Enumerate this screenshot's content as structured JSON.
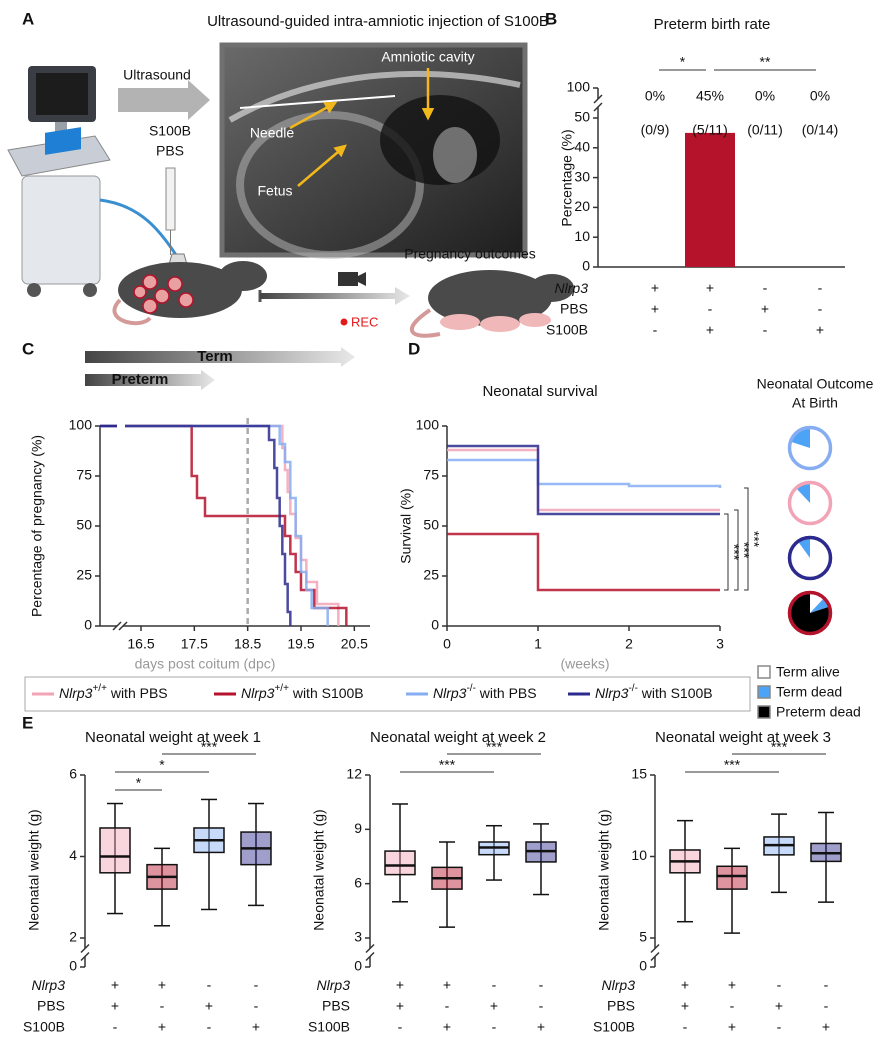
{
  "panel_letters": [
    "A",
    "B",
    "C",
    "D",
    "E"
  ],
  "panel_a": {
    "title": "Ultrasound-guided intra-amniotic injection of S100B",
    "labels": [
      "Ultrasound",
      "S100B",
      "PBS",
      "Amniotic cavity",
      "Needle",
      "Fetus",
      "Pregnancy outcomes",
      "REC"
    ]
  },
  "chart_data": [
    {
      "type": "bar",
      "title": "Preterm birth rate",
      "ylabel": "Percentage (%)",
      "values": [
        0,
        45,
        0,
        0
      ],
      "value_labels": [
        "0%",
        "45%",
        "0%",
        "0%"
      ],
      "counts": [
        "(0/9)",
        "(5/11)",
        "(0/11)",
        "(0/14)"
      ],
      "color": "#b5122b",
      "ylim": [
        0,
        100
      ],
      "yticks": [
        0,
        10,
        20,
        30,
        40,
        50,
        100
      ],
      "axis_break": "top",
      "significance": [
        {
          "from": 0,
          "to": 1,
          "label": "*"
        },
        {
          "from": 1,
          "to": 3,
          "label": "**"
        }
      ],
      "genotype_table": [
        {
          "label": "Nlrp3",
          "values": [
            "+",
            "+",
            "-",
            "-"
          ]
        },
        {
          "label": "PBS",
          "values": [
            "+",
            "-",
            "+",
            "-"
          ]
        },
        {
          "label": "S100B",
          "values": [
            "-",
            "+",
            "-",
            "+"
          ]
        }
      ]
    },
    {
      "type": "line",
      "step": true,
      "ylabel": "Percentage of pregnancy (%)",
      "xlabel": "days post coitum (dpc)",
      "xlim": [
        16.2,
        20.7
      ],
      "xticks": [
        16.5,
        17.5,
        18.5,
        19.5,
        20.5
      ],
      "ylim": [
        0,
        100
      ],
      "yticks": [
        0,
        25,
        50,
        75,
        100
      ],
      "x_axis_break": true,
      "reference_line": {
        "x": 18.5,
        "style": "dashed",
        "color": "#aaaaaa"
      },
      "annotations": [
        "Term",
        "Preterm"
      ],
      "series": [
        {
          "name": "Nlrp3+/+ with PBS",
          "color": "#f2a3b6",
          "x": [
            16.2,
            19.15,
            19.2,
            19.25,
            19.3,
            19.4,
            19.5,
            19.6,
            19.8,
            20.2
          ],
          "values": [
            100,
            89,
            78,
            67,
            56,
            44,
            33,
            22,
            11,
            0
          ]
        },
        {
          "name": "Nlrp3+/+ with S100B",
          "color": "#b5122b",
          "x": [
            16.2,
            17.45,
            17.55,
            17.7,
            19.2,
            19.3,
            19.4,
            19.5,
            19.75,
            20.35
          ],
          "values": [
            100,
            75,
            64,
            55,
            45,
            36,
            27,
            18,
            9,
            0
          ]
        },
        {
          "name": "Nlrp3-/- with PBS",
          "color": "#86adf2",
          "x": [
            16.2,
            19.1,
            19.2,
            19.3,
            19.4,
            19.5,
            19.6,
            19.7,
            20.0
          ],
          "values": [
            100,
            91,
            82,
            64,
            45,
            27,
            18,
            9,
            0
          ]
        },
        {
          "name": "Nlrp3-/- with S100B",
          "color": "#2c2a8e",
          "x": [
            16.2,
            18.9,
            19.0,
            19.05,
            19.1,
            19.15,
            19.2,
            19.25,
            19.3
          ],
          "values": [
            100,
            93,
            79,
            64,
            50,
            36,
            21,
            7,
            0
          ]
        }
      ]
    },
    {
      "type": "line",
      "step": true,
      "title": "Neonatal survival",
      "ylabel": "Survival (%)",
      "xlabel": "(weeks)",
      "xlim": [
        0,
        3
      ],
      "xticks": [
        0,
        1,
        2,
        3
      ],
      "ylim": [
        0,
        100
      ],
      "yticks": [
        0,
        25,
        50,
        75,
        100
      ],
      "series": [
        {
          "color": "#f2a3b6",
          "x": [
            0,
            1,
            3
          ],
          "values": [
            88,
            58,
            58
          ]
        },
        {
          "color": "#b5122b",
          "x": [
            0,
            1,
            3
          ],
          "values": [
            46,
            18,
            18
          ]
        },
        {
          "color": "#86adf2",
          "x": [
            0,
            1,
            2,
            3
          ],
          "values": [
            83,
            71,
            70,
            69
          ]
        },
        {
          "color": "#2c2a8e",
          "x": [
            0,
            1,
            3
          ],
          "values": [
            90,
            56,
            56
          ]
        }
      ],
      "significance": [
        {
          "from": 1,
          "to": 3,
          "label": "***"
        },
        {
          "from": 1,
          "to": 0,
          "label": "***"
        },
        {
          "from": 1,
          "to": 2,
          "label": "***"
        }
      ],
      "pies": {
        "title": [
          "Neonatal Outcome",
          "At Birth"
        ],
        "categories": [
          "Term alive",
          "Term dead",
          "Preterm dead"
        ],
        "colors": [
          "#ffffff",
          "#4da3f5",
          "#000000"
        ],
        "ring_series": [
          2,
          0,
          3,
          1
        ],
        "values": [
          [
            80,
            20,
            0
          ],
          [
            88,
            12,
            0
          ],
          [
            90,
            10,
            0
          ],
          [
            12,
            8,
            80
          ]
        ]
      }
    },
    {
      "type": "box",
      "title": "Neonatal weight at week 1",
      "ylabel": "Neonatal weight (g)",
      "ylim": [
        0,
        6
      ],
      "yticks": [
        0,
        2,
        4,
        6
      ],
      "axis_break": "bottom",
      "colors": [
        "#f2a3b6",
        "#b5122b",
        "#86adf2",
        "#2c2a8e"
      ],
      "boxes": [
        {
          "min": 2.6,
          "q1": 3.6,
          "median": 4.0,
          "q3": 4.7,
          "max": 5.3
        },
        {
          "min": 2.3,
          "q1": 3.2,
          "median": 3.5,
          "q3": 3.8,
          "max": 4.2
        },
        {
          "min": 2.7,
          "q1": 4.1,
          "median": 4.4,
          "q3": 4.7,
          "max": 5.4
        },
        {
          "min": 2.8,
          "q1": 3.8,
          "median": 4.2,
          "q3": 4.6,
          "max": 5.3
        }
      ],
      "significance": [
        {
          "from": 0,
          "to": 1,
          "label": "*"
        },
        {
          "from": 0,
          "to": 2,
          "label": "*"
        },
        {
          "from": 1,
          "to": 3,
          "label": "***"
        }
      ],
      "genotype_table": [
        {
          "label": "Nlrp3",
          "values": [
            "+",
            "+",
            "-",
            "-"
          ]
        },
        {
          "label": "PBS",
          "values": [
            "+",
            "-",
            "+",
            "-"
          ]
        },
        {
          "label": "S100B",
          "values": [
            "-",
            "+",
            "-",
            "+"
          ]
        }
      ]
    },
    {
      "type": "box",
      "title": "Neonatal weight at week 2",
      "ylabel": "Neonatal weight (g)",
      "ylim": [
        0,
        12
      ],
      "yticks": [
        0,
        3,
        6,
        9,
        12
      ],
      "axis_break": "bottom",
      "colors": [
        "#f2a3b6",
        "#b5122b",
        "#86adf2",
        "#2c2a8e"
      ],
      "boxes": [
        {
          "min": 5.0,
          "q1": 6.5,
          "median": 7.0,
          "q3": 7.8,
          "max": 10.4
        },
        {
          "min": 3.6,
          "q1": 5.7,
          "median": 6.3,
          "q3": 6.9,
          "max": 8.3
        },
        {
          "min": 6.2,
          "q1": 7.6,
          "median": 8.0,
          "q3": 8.3,
          "max": 9.2
        },
        {
          "min": 5.4,
          "q1": 7.2,
          "median": 7.8,
          "q3": 8.3,
          "max": 9.3
        }
      ],
      "significance": [
        {
          "from": 0,
          "to": 2,
          "label": "***"
        },
        {
          "from": 1,
          "to": 3,
          "label": "***"
        }
      ],
      "genotype_table": [
        {
          "label": "Nlrp3",
          "values": [
            "+",
            "+",
            "-",
            "-"
          ]
        },
        {
          "label": "PBS",
          "values": [
            "+",
            "-",
            "+",
            "-"
          ]
        },
        {
          "label": "S100B",
          "values": [
            "-",
            "+",
            "-",
            "+"
          ]
        }
      ]
    },
    {
      "type": "box",
      "title": "Neonatal weight at week 3",
      "ylabel": "Neonatal weight (g)",
      "ylim": [
        0,
        15
      ],
      "yticks": [
        0,
        5,
        10,
        15
      ],
      "axis_break": "bottom",
      "colors": [
        "#f2a3b6",
        "#b5122b",
        "#86adf2",
        "#2c2a8e"
      ],
      "boxes": [
        {
          "min": 6.0,
          "q1": 9.0,
          "median": 9.7,
          "q3": 10.4,
          "max": 12.2
        },
        {
          "min": 5.3,
          "q1": 8.0,
          "median": 8.8,
          "q3": 9.4,
          "max": 10.5
        },
        {
          "min": 7.8,
          "q1": 10.1,
          "median": 10.7,
          "q3": 11.2,
          "max": 12.6
        },
        {
          "min": 7.2,
          "q1": 9.7,
          "median": 10.2,
          "q3": 10.8,
          "max": 12.7
        }
      ],
      "significance": [
        {
          "from": 0,
          "to": 2,
          "label": "***"
        },
        {
          "from": 1,
          "to": 3,
          "label": "***"
        }
      ],
      "genotype_table": [
        {
          "label": "Nlrp3",
          "values": [
            "+",
            "+",
            "-",
            "-"
          ]
        },
        {
          "label": "PBS",
          "values": [
            "+",
            "-",
            "+",
            "-"
          ]
        },
        {
          "label": "S100B",
          "values": [
            "-",
            "+",
            "-",
            "+"
          ]
        }
      ]
    }
  ]
}
